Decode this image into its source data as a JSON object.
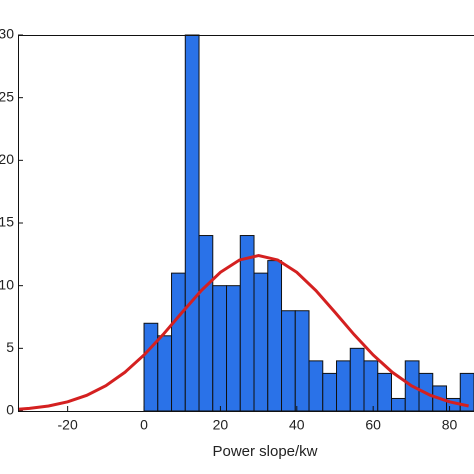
{
  "chart_data": {
    "type": "histogram",
    "x_label": "Power slope/kw",
    "bins": [
      0,
      3.6,
      7.2,
      10.8,
      14.4,
      18,
      21.6,
      25.2,
      28.8,
      32.4,
      36,
      39.6,
      43.2,
      46.8,
      50.4,
      54,
      57.6,
      61.2,
      64.8,
      68.4,
      72,
      75.6,
      79.2,
      82.8,
      86.4
    ],
    "values": [
      7,
      6,
      11,
      30,
      14,
      10,
      10,
      14,
      11,
      12,
      8,
      8,
      4,
      3,
      4,
      5,
      4,
      3,
      1,
      4,
      3,
      2,
      1,
      3
    ],
    "color": "#2a72e8",
    "fit": {
      "color": "#d42020",
      "x": [
        -33,
        -30,
        -25,
        -20,
        -15,
        -10,
        -5,
        0,
        5,
        10,
        15,
        20,
        25,
        30,
        35,
        40,
        45,
        50,
        55,
        60,
        65,
        70,
        75,
        80,
        85
      ],
      "values": [
        0.14,
        0.21,
        0.4,
        0.73,
        1.25,
        2.02,
        3.09,
        4.47,
        6.1,
        7.88,
        9.61,
        11.07,
        12.05,
        12.4,
        12.05,
        11.07,
        9.61,
        7.88,
        6.1,
        4.47,
        3.09,
        2.02,
        1.25,
        0.73,
        0.4
      ]
    },
    "xlim": [
      -33,
      86.4
    ],
    "ylim": [
      0,
      30
    ],
    "xticks": [
      -20,
      0,
      20,
      40,
      60,
      80
    ],
    "yticks": [
      0,
      5,
      10,
      15,
      20,
      25,
      30
    ]
  }
}
